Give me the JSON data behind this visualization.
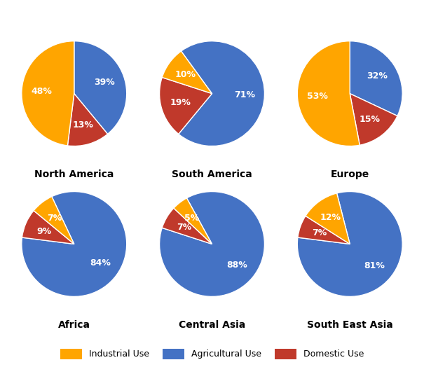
{
  "regions": [
    "North America",
    "South America",
    "Europe",
    "Africa",
    "Central Asia",
    "South East Asia"
  ],
  "slices": [
    {
      "industrial": 48,
      "agricultural": 39,
      "domestic": 13
    },
    {
      "industrial": 10,
      "agricultural": 71,
      "domestic": 19
    },
    {
      "industrial": 53,
      "agricultural": 32,
      "domestic": 15
    },
    {
      "industrial": 7,
      "agricultural": 84,
      "domestic": 9
    },
    {
      "industrial": 5,
      "agricultural": 88,
      "domestic": 7
    },
    {
      "industrial": 12,
      "agricultural": 81,
      "domestic": 7
    }
  ],
  "startangles": [
    90,
    126,
    90,
    115.2,
    118.8,
    104.4
  ],
  "colors": {
    "industrial": "#FFA500",
    "agricultural": "#4472C4",
    "domestic": "#C0392B"
  },
  "legend_labels": [
    "Industrial Use",
    "Agricultural Use",
    "Domestic Use"
  ],
  "background": "#FFFFFF",
  "label_fontsize": 9,
  "title_fontsize": 10
}
